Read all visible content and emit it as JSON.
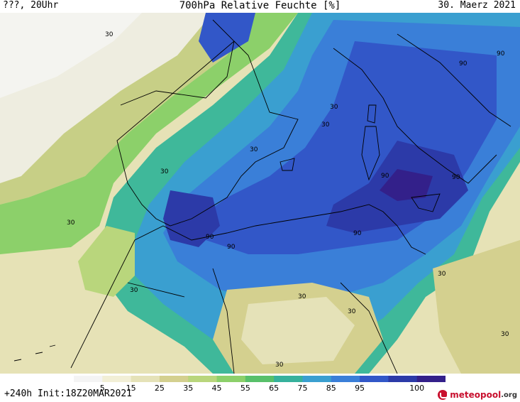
{
  "header": {
    "left": "???, 20Uhr",
    "title": "700hPa Relative Feuchte [%]",
    "date": "30. Maerz 2021"
  },
  "map": {
    "contour_labels": [
      "30",
      "30",
      "30",
      "30",
      "30",
      "30",
      "30",
      "30",
      "30",
      "30",
      "30",
      "30",
      "90",
      "90",
      "90",
      "90",
      "90",
      "90",
      "90"
    ],
    "colors": {
      "very_dry": "#f4f4f0",
      "dry": "#e8e6c8",
      "tan": "#d8d4a0",
      "olive": "#c7cf86",
      "green_light": "#a9d37c",
      "green": "#5fbf5f",
      "teal": "#3fb89a",
      "cyan": "#3fa8c8",
      "blue_light": "#4a88d8",
      "blue": "#3a5fd0",
      "blue_dark": "#3040b8",
      "purple": "#3a2a9a",
      "deep_purple": "#2a1a70"
    }
  },
  "colorbar": {
    "ticks": [
      "5",
      "15",
      "25",
      "35",
      "45",
      "55",
      "65",
      "75",
      "85",
      "95",
      "100"
    ],
    "colors": [
      "#f4f4f4",
      "#f2efd6",
      "#e5e2b8",
      "#d4d08f",
      "#b9d67c",
      "#8cd06a",
      "#58c06a",
      "#36b19c",
      "#3a9fd0",
      "#3a7fd8",
      "#3257c8",
      "#2c3aa8",
      "#33208a"
    ]
  },
  "footer": {
    "forecast": "+240h Init:18Z20MAR2021",
    "logo_main": "meteopool",
    "logo_suffix": ".org"
  }
}
